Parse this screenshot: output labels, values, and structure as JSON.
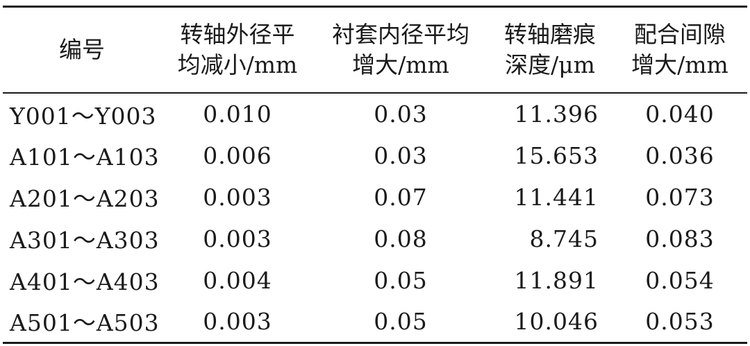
{
  "table": {
    "headers": [
      {
        "line1": "编号",
        "line2": ""
      },
      {
        "line1": "转轴外径平",
        "line2": "均减小/mm"
      },
      {
        "line1": "衬套内径平均",
        "line2": "增大/mm"
      },
      {
        "line1": "转轴磨痕",
        "line2": "深度/μm"
      },
      {
        "line1": "配合间隙",
        "line2": "增大/mm"
      }
    ],
    "rows": [
      {
        "id": "Y001～Y003",
        "shaft": "0.010",
        "bushing": "0.03",
        "depth": "11.396",
        "clearance": "0.040"
      },
      {
        "id": "A101～A103",
        "shaft": "0.006",
        "bushing": "0.03",
        "depth": "15.653",
        "clearance": "0.036"
      },
      {
        "id": "A201～A203",
        "shaft": "0.003",
        "bushing": "0.07",
        "depth": "11.441",
        "clearance": "0.073"
      },
      {
        "id": "A301～A303",
        "shaft": "0.003",
        "bushing": "0.08",
        "depth": "8.745",
        "clearance": "0.083"
      },
      {
        "id": "A401～A403",
        "shaft": "0.004",
        "bushing": "0.05",
        "depth": "11.891",
        "clearance": "0.054"
      },
      {
        "id": "A501～A503",
        "shaft": "0.003",
        "bushing": "0.05",
        "depth": "10.046",
        "clearance": "0.053"
      }
    ]
  }
}
